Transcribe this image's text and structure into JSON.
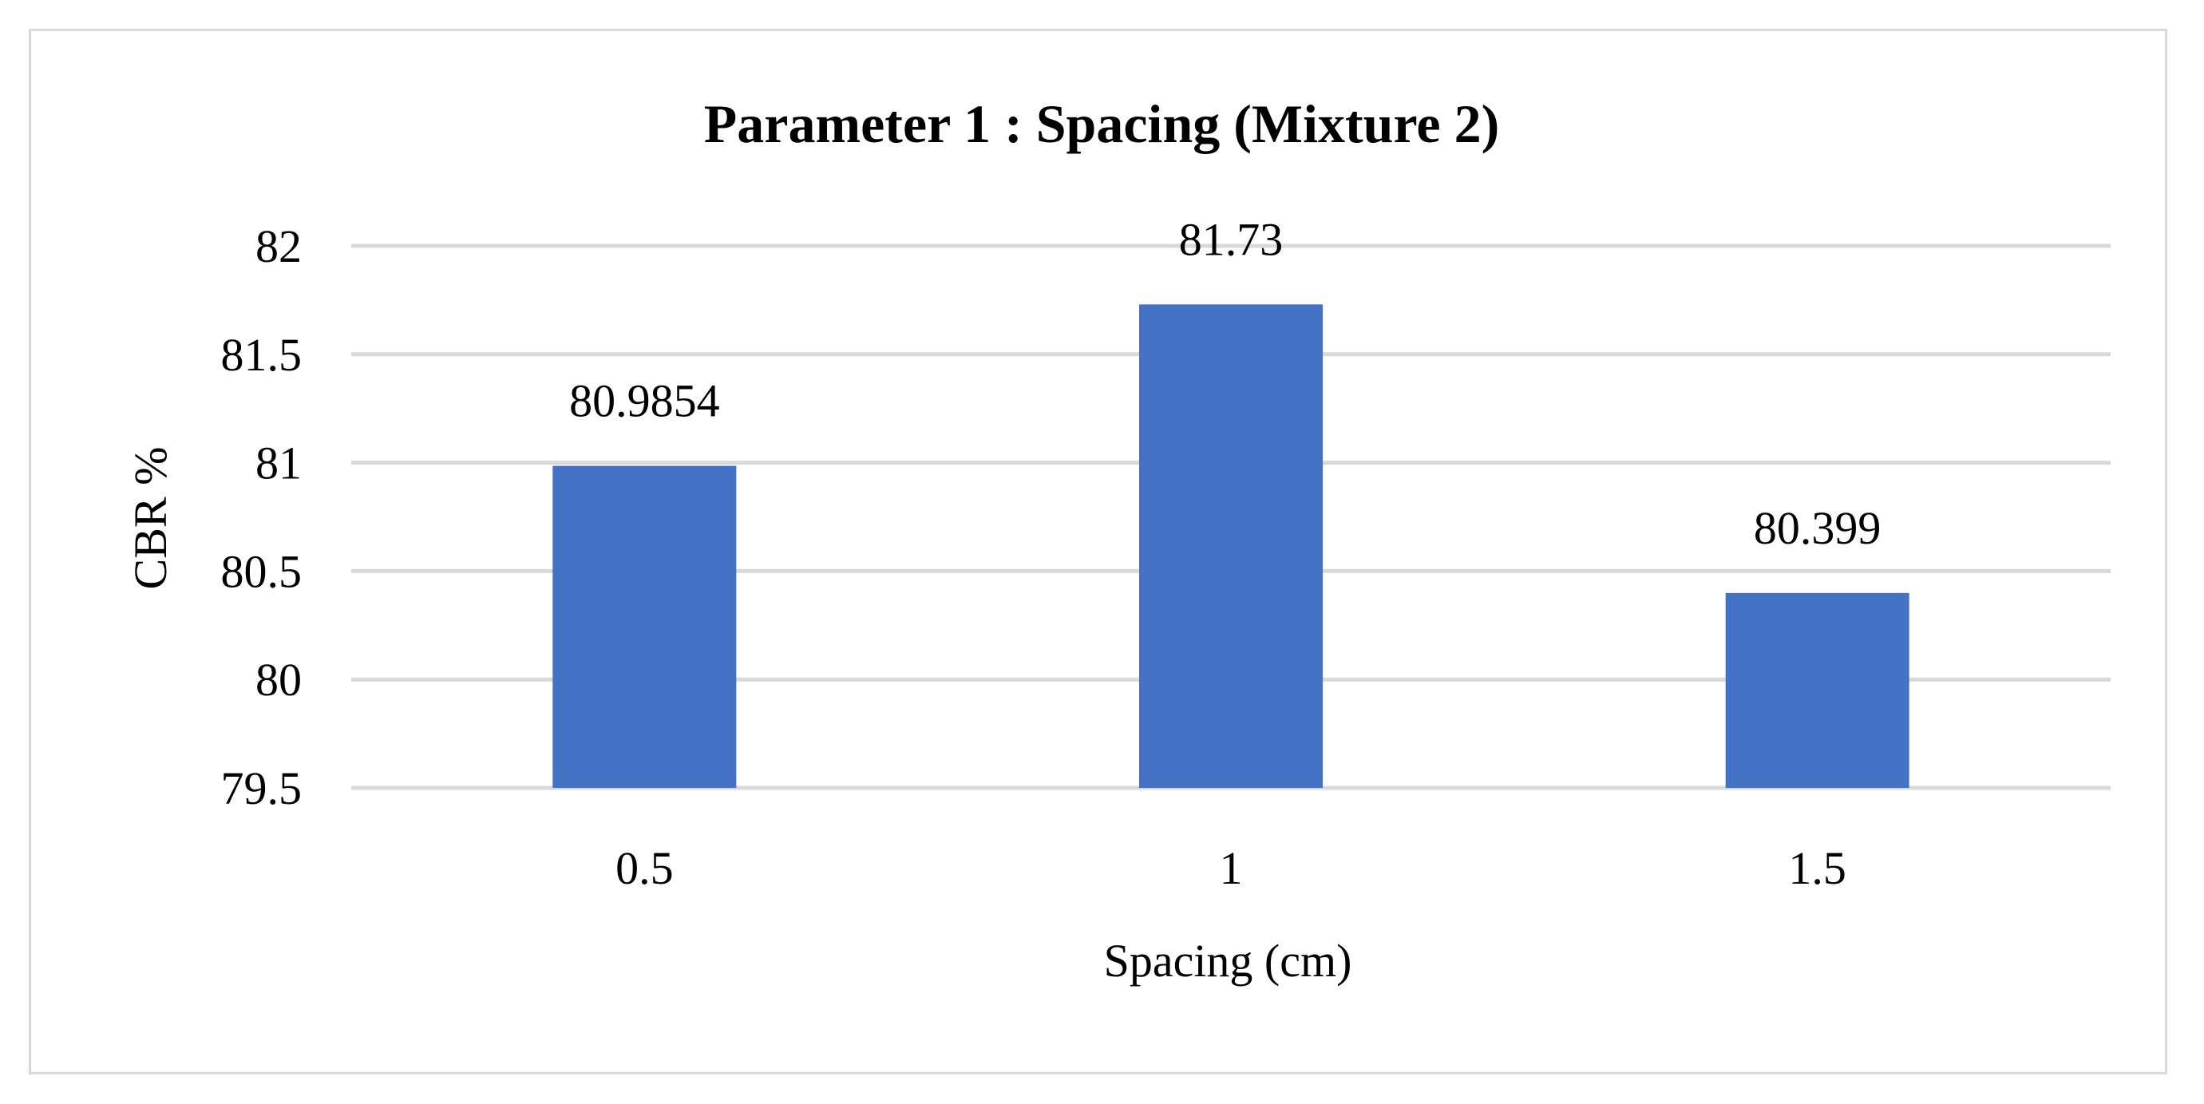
{
  "chart_data": {
    "type": "bar",
    "title": "Parameter 1 : Spacing (Mixture 2)",
    "xlabel": "Spacing (cm)",
    "ylabel": "CBR %",
    "categories": [
      "0.5",
      "1",
      "1.5"
    ],
    "values": [
      80.9854,
      81.73,
      80.399
    ],
    "data_labels": [
      "80.9854",
      "81.73",
      "80.399"
    ],
    "ylim": [
      79.5,
      82
    ],
    "yticks": [
      "79.5",
      "80",
      "80.5",
      "81",
      "81.5",
      "82"
    ],
    "grid": true,
    "legend": "none",
    "bar_color": "#4472c4",
    "grid_color": "#d9d9d9"
  }
}
